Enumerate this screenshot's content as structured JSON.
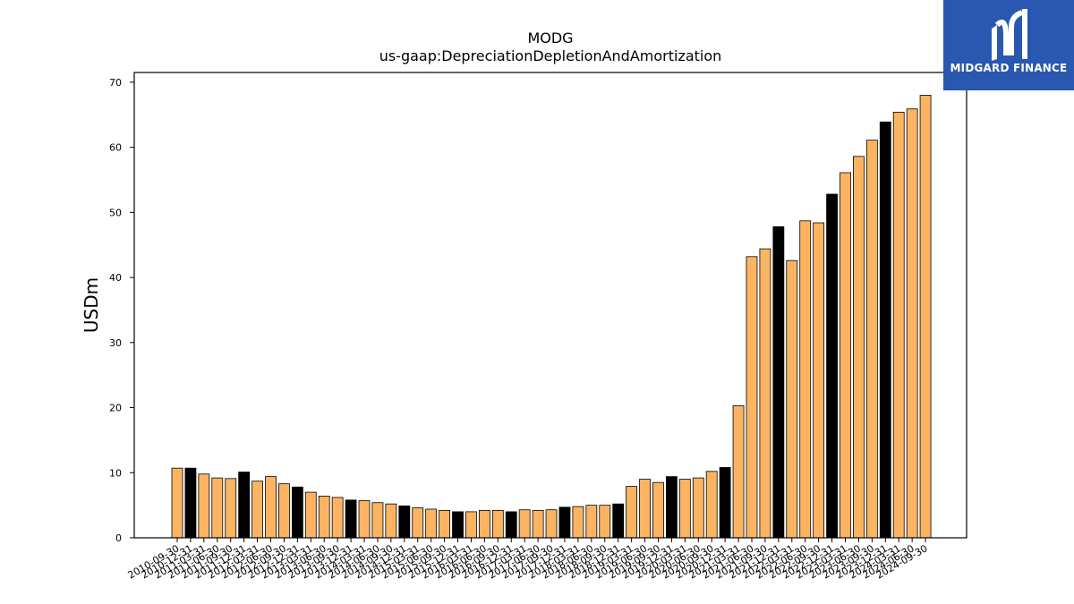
{
  "brand": {
    "logo_text": "MIDGARD FINANCE",
    "background_color": "#2a57b0"
  },
  "colors": {
    "bar_regular": "#fdb462",
    "bar_highlight": "#000000",
    "bar_edge": "#000000"
  },
  "chart_data": {
    "type": "bar",
    "title": "MODG",
    "subtitle": "us-gaap:DepreciationDepletionAndAmortization",
    "xlabel": "",
    "ylabel": "USDm",
    "ylim": [
      0,
      71.5
    ],
    "yticks": [
      0,
      10,
      20,
      30,
      40,
      50,
      60,
      70
    ],
    "grid": false,
    "categories": [
      "2010-09-30",
      "2010-12-31",
      "2011-03-31",
      "2011-06-30",
      "2011-09-30",
      "2011-12-31",
      "2012-03-31",
      "2012-06-30",
      "2012-09-30",
      "2012-12-31",
      "2013-03-31",
      "2013-06-30",
      "2013-09-30",
      "2013-12-31",
      "2014-03-31",
      "2014-06-30",
      "2014-09-30",
      "2014-12-31",
      "2015-03-31",
      "2015-06-30",
      "2015-09-30",
      "2015-12-31",
      "2016-03-31",
      "2016-06-30",
      "2016-09-30",
      "2016-12-31",
      "2017-03-31",
      "2017-06-30",
      "2017-09-30",
      "2017-12-31",
      "2018-03-31",
      "2018-06-30",
      "2018-09-30",
      "2018-12-31",
      "2019-03-31",
      "2019-06-30",
      "2019-09-30",
      "2019-12-31",
      "2020-03-31",
      "2020-06-30",
      "2020-09-30",
      "2020-12-31",
      "2021-03-31",
      "2021-06-30",
      "2021-09-30",
      "2021-12-31",
      "2022-03-31",
      "2022-06-30",
      "2022-09-30",
      "2022-12-31",
      "2023-03-31",
      "2023-06-30",
      "2023-09-30",
      "2023-12-31",
      "2024-03-31",
      "2024-06-30",
      "2024-09-30"
    ],
    "tick_labels": [
      "2010-09-30",
      "2010-12-31",
      "2011-03-31",
      "2011-06-30",
      "2011-09-30",
      "2011-12-31",
      "2012-03-31",
      "2012-06-30",
      "2012-09-30",
      "2012-12-31",
      "2013-03-31",
      "2013-06-30",
      "2013-09-30",
      "2013-12-31",
      "2014-03-31",
      "2014-06-30",
      "2014-09-30",
      "2014-12-31",
      "2015-03-31",
      "2015-06-30",
      "2015-09-30",
      "2015-12-31",
      "2016-03-31",
      "2016-06-30",
      "2016-09-30",
      "2016-12-31",
      "2017-03-31",
      "2017-06-30",
      "2017-09-30",
      "2017-12-31",
      "2018-03-31",
      "2018-06-30",
      "2018-09-30",
      "2018-12-31",
      "2019-03-31",
      "2019-06-30",
      "2019-09-30",
      "2019-12-31",
      "2020-03-31",
      "2020-06-30",
      "2020-09-30",
      "2020-12-31",
      "2021-03-31",
      "2021-06-30",
      "2021-09-30",
      "2021-12-31",
      "2022-03-31",
      "2022-06-30",
      "2022-09-30",
      "2022-12-31",
      "2023-03-31",
      "2023-06-30",
      "2023-09-30",
      "2023-12-31",
      "2024-03-31",
      "2024-06-30",
      "2024-09-30"
    ],
    "values": [
      10.7,
      10.7,
      9.8,
      9.2,
      9.1,
      10.1,
      8.7,
      9.4,
      8.3,
      7.8,
      7.0,
      6.4,
      6.2,
      5.8,
      5.7,
      5.4,
      5.2,
      4.9,
      4.6,
      4.4,
      4.2,
      4.0,
      4.0,
      4.2,
      4.2,
      4.0,
      4.3,
      4.2,
      4.3,
      4.7,
      4.8,
      5.0,
      5.0,
      5.2,
      7.9,
      9.0,
      8.5,
      9.4,
      9.0,
      9.2,
      10.2,
      10.8,
      20.3,
      43.2,
      44.4,
      47.8,
      42.6,
      48.7,
      48.4,
      52.8,
      56.1,
      58.6,
      61.1,
      63.9,
      65.4,
      65.9,
      68.0
    ],
    "highlighted": [
      false,
      true,
      false,
      false,
      false,
      true,
      false,
      false,
      false,
      true,
      false,
      false,
      false,
      true,
      false,
      false,
      false,
      true,
      false,
      false,
      false,
      true,
      false,
      false,
      false,
      true,
      false,
      false,
      false,
      true,
      false,
      false,
      false,
      true,
      false,
      false,
      false,
      true,
      false,
      false,
      false,
      true,
      false,
      false,
      false,
      true,
      false,
      false,
      false,
      true,
      false,
      false,
      false,
      true,
      false,
      false,
      false
    ]
  }
}
